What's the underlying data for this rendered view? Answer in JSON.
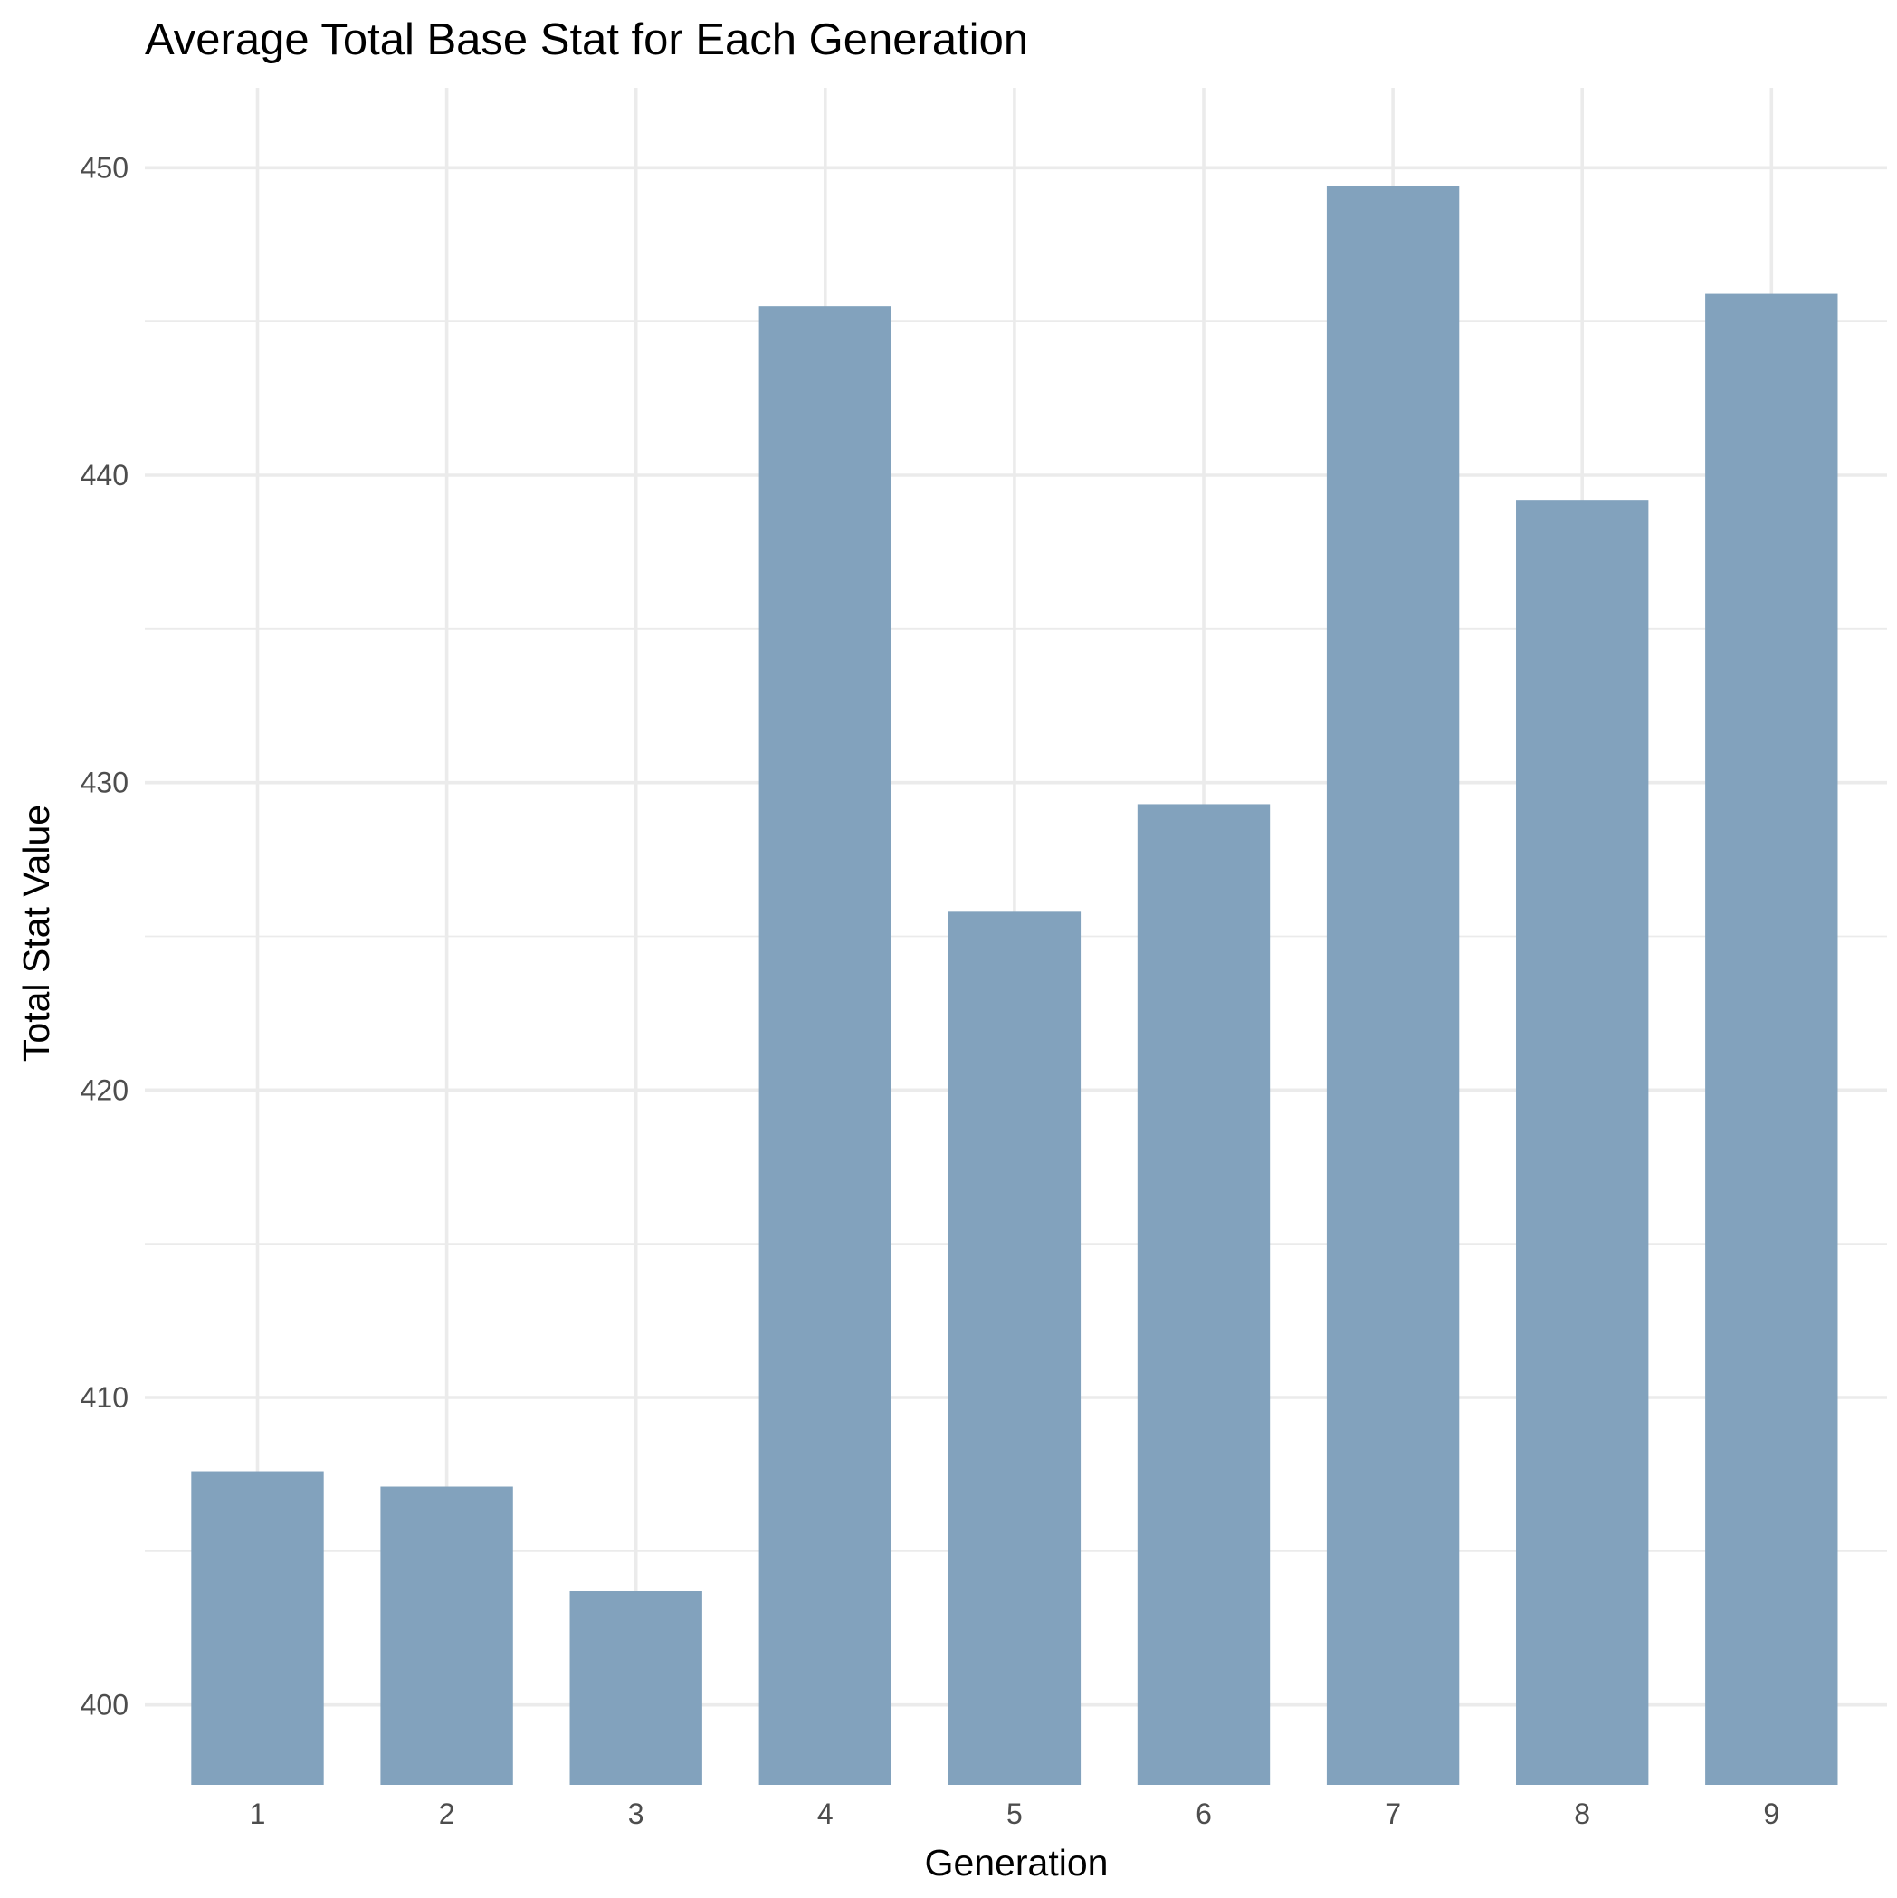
{
  "chart_data": {
    "type": "bar",
    "title": "Average Total Base Stat for Each Generation",
    "xlabel": "Generation",
    "ylabel": "Total Stat Value",
    "categories": [
      "1",
      "2",
      "3",
      "4",
      "5",
      "6",
      "7",
      "8",
      "9"
    ],
    "values": [
      407.6,
      407.1,
      403.7,
      445.5,
      425.8,
      429.3,
      449.4,
      439.2,
      445.9
    ],
    "ylim": [
      397.4,
      452.6
    ],
    "yticks": [
      400,
      410,
      420,
      430,
      440,
      450
    ],
    "grid": true,
    "legend": "none",
    "bar_color": "#82a2bd",
    "grid_color": "#ebebeb"
  }
}
